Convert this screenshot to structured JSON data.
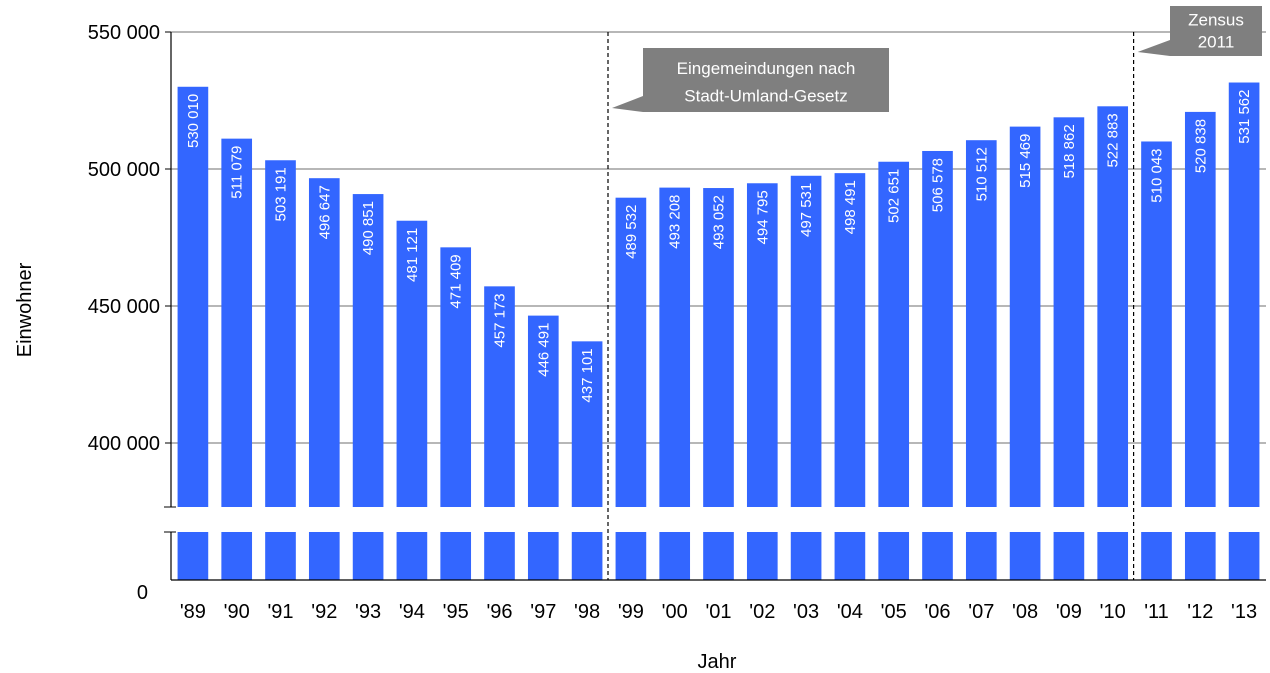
{
  "chart_data": {
    "type": "bar",
    "categories": [
      "'89",
      "'90",
      "'91",
      "'92",
      "'93",
      "'94",
      "'95",
      "'96",
      "'97",
      "'98",
      "'99",
      "'00",
      "'01",
      "'02",
      "'03",
      "'04",
      "'05",
      "'06",
      "'07",
      "'08",
      "'09",
      "'10",
      "'11",
      "'12",
      "'13"
    ],
    "values": [
      530010,
      511079,
      503191,
      496647,
      490851,
      481121,
      471409,
      457173,
      446491,
      437101,
      489532,
      493208,
      493052,
      494795,
      497531,
      498491,
      502651,
      506578,
      510512,
      515469,
      518862,
      522883,
      510043,
      520838,
      531562
    ],
    "value_labels": [
      "530 010",
      "511 079",
      "503 191",
      "496 647",
      "490 851",
      "481 121",
      "471 409",
      "457 173",
      "446 491",
      "437 101",
      "489 532",
      "493 208",
      "493 052",
      "494 795",
      "497 531",
      "498 491",
      "502 651",
      "506 578",
      "510 512",
      "515 469",
      "518 862",
      "522 883",
      "510 043",
      "520 838",
      "531 562"
    ],
    "xlabel": "Jahr",
    "ylabel": "Einwohner",
    "yticks": [
      400000,
      450000,
      500000,
      550000
    ],
    "ytick_labels": [
      "400 000",
      "450 000",
      "500 000",
      "550 000"
    ],
    "zero_label": "0",
    "ylim": [
      400000,
      550000
    ],
    "axis_break": true,
    "grid": true,
    "bar_color": "#3366FF",
    "annotations": [
      {
        "lines": [
          "Eingemeindungen nach",
          "Stadt-Umland-Gesetz"
        ],
        "category": "'99"
      },
      {
        "lines": [
          "Zensus",
          "2011"
        ],
        "category": "'11"
      }
    ]
  }
}
